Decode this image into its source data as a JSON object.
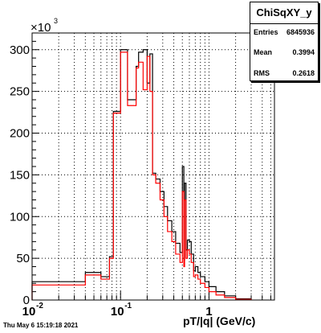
{
  "stats_box": {
    "title": "ChiSqXY_y",
    "rows": [
      {
        "label": "Entries",
        "value": "6845936"
      },
      {
        "label": "Mean",
        "value": "0.3994"
      },
      {
        "label": "RMS",
        "value": "0.2618"
      }
    ]
  },
  "footer": {
    "timestamp": "Thu May  6 15:19:18 2021"
  },
  "chart_data": {
    "type": "line",
    "title": "ChiSqXY_y",
    "xlabel": "pT/|q| (GeV/c)",
    "ylabel": "",
    "xscale": "log",
    "xlim": [
      0.01,
      5.5
    ],
    "ylim": [
      0,
      320000
    ],
    "y_multiplier_label": "×10",
    "y_multiplier_exponent": "3",
    "x_ticks": [
      {
        "value": 0.01,
        "label": "10",
        "sup": "-2"
      },
      {
        "value": 0.1,
        "label": "10",
        "sup": "-1"
      },
      {
        "value": 1,
        "label": "1",
        "sup": ""
      }
    ],
    "y_ticks": [
      {
        "value": 0,
        "label": "0"
      },
      {
        "value": 50000,
        "label": "50"
      },
      {
        "value": 100000,
        "label": "100"
      },
      {
        "value": 150000,
        "label": "150"
      },
      {
        "value": 200000,
        "label": "200"
      },
      {
        "value": 250000,
        "label": "250"
      },
      {
        "value": 300000,
        "label": "300"
      }
    ],
    "grid": true,
    "series": [
      {
        "color": "#000000",
        "edges": [
          0.01,
          0.04,
          0.06,
          0.075,
          0.083,
          0.1,
          0.12,
          0.15,
          0.16,
          0.18,
          0.2,
          0.215,
          0.23,
          0.25,
          0.28,
          0.31,
          0.34,
          0.38,
          0.42,
          0.47,
          0.5,
          0.52,
          0.53,
          0.55,
          0.57,
          0.6,
          0.63,
          0.67,
          0.7,
          0.75,
          0.8,
          0.9,
          1.0,
          1.2,
          1.5,
          2.0,
          3.0
        ],
        "values": [
          22000,
          33000,
          28000,
          52000,
          226000,
          300000,
          240000,
          280000,
          297000,
          300000,
          260000,
          295000,
          152000,
          145000,
          130000,
          112000,
          95000,
          82000,
          68000,
          57000,
          160000,
          48000,
          140000,
          60000,
          72000,
          70000,
          55000,
          35000,
          40000,
          33000,
          28000,
          22000,
          16000,
          10000,
          5000,
          1500
        ]
      },
      {
        "color": "#ff0000",
        "edges": [
          0.01,
          0.04,
          0.06,
          0.075,
          0.083,
          0.1,
          0.12,
          0.15,
          0.16,
          0.18,
          0.2,
          0.215,
          0.23,
          0.25,
          0.28,
          0.31,
          0.34,
          0.38,
          0.42,
          0.47,
          0.5,
          0.52,
          0.53,
          0.55,
          0.57,
          0.6,
          0.63,
          0.67,
          0.7,
          0.75,
          0.8,
          0.9,
          1.0,
          1.2,
          1.5,
          2.0,
          3.0
        ],
        "values": [
          18000,
          30000,
          25000,
          50000,
          224000,
          297000,
          233000,
          278000,
          285000,
          252000,
          292000,
          250000,
          150000,
          140000,
          120000,
          100000,
          82000,
          70000,
          55000,
          45000,
          130000,
          40000,
          120000,
          50000,
          60000,
          55000,
          45000,
          28000,
          30000,
          25000,
          20000,
          15000,
          10000,
          6000,
          3000,
          800
        ]
      }
    ]
  }
}
